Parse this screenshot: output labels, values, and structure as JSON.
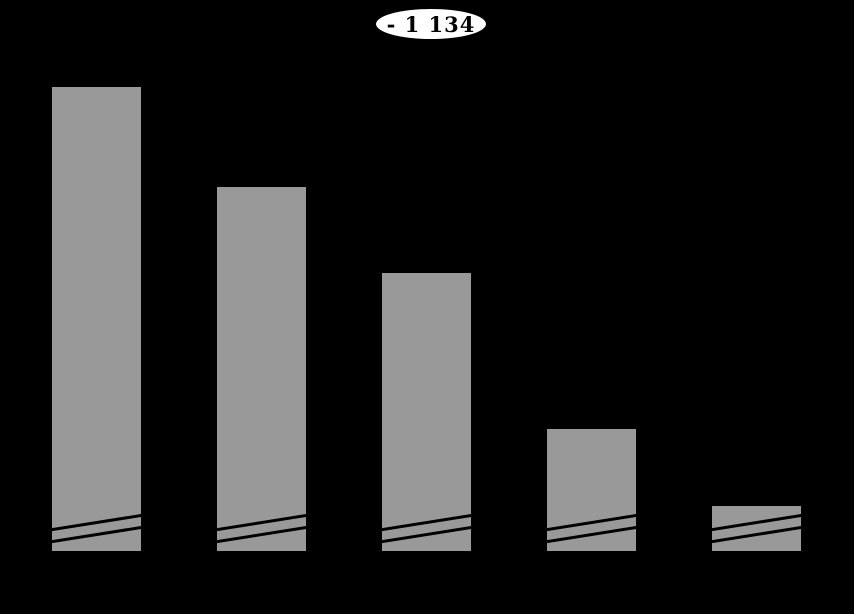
{
  "chart_data": {
    "type": "bar",
    "title": "",
    "xlabel": "",
    "ylabel": "",
    "categories": [
      "",
      "",
      "",
      "",
      ""
    ],
    "values": [
      1267,
      996,
      763,
      341,
      133
    ],
    "values_estimated": true,
    "annotation": {
      "text": "- 1 134",
      "shape": "ellipse",
      "position": "top-center"
    },
    "axis_break": true,
    "grid": false,
    "legend": false,
    "colors": {
      "bar": "#999999",
      "bar_border": "#000000",
      "background": "#000000",
      "annotation_fill": "#ffffff",
      "annotation_border": "#000000",
      "annotation_text": "#000000"
    }
  }
}
